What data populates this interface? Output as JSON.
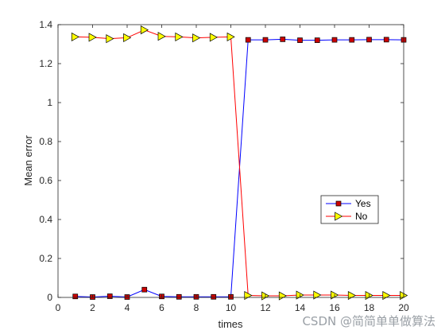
{
  "chart_data": {
    "type": "line",
    "xlabel": "times",
    "ylabel": "Mean error",
    "xlim": [
      0,
      20
    ],
    "ylim": [
      0,
      1.4
    ],
    "xticks": [
      0,
      2,
      4,
      6,
      8,
      10,
      12,
      14,
      16,
      18,
      20
    ],
    "xtick_labels": [
      "0",
      "2",
      "4",
      "6",
      "8",
      "10",
      "12",
      "14",
      "16",
      "18",
      "20"
    ],
    "yticks": [
      0,
      0.2,
      0.4,
      0.6,
      0.8,
      1,
      1.2,
      1.4
    ],
    "ytick_labels": [
      "0",
      "0.2",
      "0.4",
      "0.6",
      "0.8",
      "1",
      "1.2",
      "1.4"
    ],
    "grid": false,
    "legend_position": "right-middle",
    "x": [
      1,
      2,
      3,
      4,
      5,
      6,
      7,
      8,
      9,
      10,
      11,
      12,
      13,
      14,
      15,
      16,
      17,
      18,
      19,
      20
    ],
    "series": [
      {
        "name": "Yes",
        "color": "#0000ff",
        "marker": "square",
        "marker_color": "#cc0000",
        "values": [
          0.005,
          0.002,
          0.006,
          0.002,
          0.04,
          0.005,
          0.003,
          0.003,
          0.003,
          0.003,
          1.322,
          1.322,
          1.325,
          1.32,
          1.32,
          1.322,
          1.322,
          1.323,
          1.323,
          1.322
        ]
      },
      {
        "name": "No",
        "color": "#ff0000",
        "marker": "triangle-right",
        "marker_color": "#ffff00",
        "values": [
          1.337,
          1.335,
          1.328,
          1.333,
          1.373,
          1.34,
          1.337,
          1.332,
          1.335,
          1.337,
          0.01,
          0.008,
          0.008,
          0.012,
          0.012,
          0.012,
          0.01,
          0.01,
          0.01,
          0.01
        ]
      }
    ]
  },
  "watermark": "CSDN @简简单单做算法"
}
